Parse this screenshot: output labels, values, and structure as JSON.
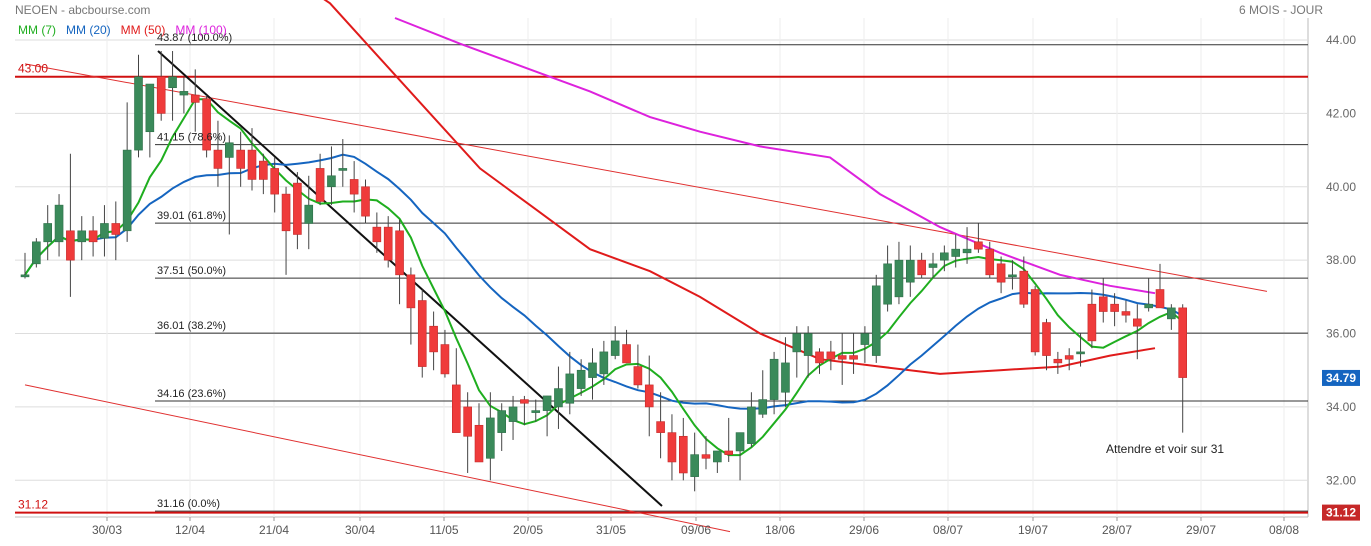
{
  "header": {
    "title": "NEOEN - abcbourse.com",
    "period": "6 MOIS - JOUR"
  },
  "legend": [
    {
      "label": "MM (7)",
      "color": "#1fae1f"
    },
    {
      "label": "MM (20)",
      "color": "#1565c0"
    },
    {
      "label": "MM (50)",
      "color": "#e01b1b"
    },
    {
      "label": "MM (100)",
      "color": "#dd22dd"
    }
  ],
  "chart_data": {
    "type": "candlestick",
    "ylim": [
      31.0,
      44.6
    ],
    "y_ticks": [
      "32.00",
      "34.00",
      "36.00",
      "38.00",
      "40.00",
      "42.00",
      "44.00"
    ],
    "x_labels": [
      "30/03",
      "12/04",
      "21/04",
      "30/04",
      "11/05",
      "20/05",
      "31/05",
      "09/06",
      "18/06",
      "29/06",
      "08/07",
      "19/07",
      "28/07",
      "29/07",
      "08/08"
    ],
    "fibonacci": [
      {
        "label": "43.87",
        "pct": "(100.0%)",
        "value": 43.87
      },
      {
        "label": "41.15",
        "pct": "(78.6%)",
        "value": 41.15
      },
      {
        "label": "39.01",
        "pct": "(61.8%)",
        "value": 39.01
      },
      {
        "label": "37.51",
        "pct": "(50.0%)",
        "value": 37.51
      },
      {
        "label": "36.01",
        "pct": "(38.2%)",
        "value": 36.01
      },
      {
        "label": "34.16",
        "pct": "(23.6%)",
        "value": 34.16
      },
      {
        "label": "31.16",
        "pct": "(0.0%)",
        "value": 31.16
      }
    ],
    "support_resistance": [
      {
        "label": "43.00",
        "value": 43.0
      },
      {
        "label": "31.12",
        "value": 31.12
      }
    ],
    "last_price": {
      "label": "34.79",
      "value": 34.79,
      "color": "#1565c0"
    },
    "support_badge": {
      "label": "31.12",
      "value": 31.12,
      "color": "#c62828"
    },
    "annotation": "Attendre et voir sur  31",
    "colors": {
      "up": "#3a8a5a",
      "down": "#ef3b3b",
      "grid": "#dddddd"
    },
    "candles": [
      [
        37.6,
        38.2,
        37.5,
        37.6
      ],
      [
        37.9,
        38.6,
        37.8,
        38.5
      ],
      [
        38.5,
        39.5,
        38.0,
        39.0
      ],
      [
        38.5,
        39.8,
        38.1,
        39.5
      ],
      [
        38.8,
        40.9,
        37.0,
        38.0
      ],
      [
        38.5,
        39.2,
        38.0,
        38.8
      ],
      [
        38.8,
        39.2,
        38.1,
        38.5
      ],
      [
        38.6,
        39.5,
        38.1,
        39.0
      ],
      [
        39.0,
        39.6,
        38.0,
        38.7
      ],
      [
        38.8,
        42.3,
        38.5,
        41.0
      ],
      [
        41.0,
        43.6,
        40.8,
        43.0
      ],
      [
        41.5,
        42.8,
        40.8,
        42.8
      ],
      [
        43.0,
        43.7,
        41.8,
        42.0
      ],
      [
        42.7,
        43.7,
        41.8,
        43.0
      ],
      [
        42.5,
        43.0,
        42.0,
        42.6
      ],
      [
        42.5,
        43.2,
        41.5,
        42.3
      ],
      [
        42.4,
        42.5,
        40.8,
        41.0
      ],
      [
        41.0,
        41.8,
        40.0,
        40.5
      ],
      [
        40.8,
        41.4,
        38.7,
        41.2
      ],
      [
        41.0,
        41.5,
        40.0,
        40.5
      ],
      [
        41.0,
        41.6,
        39.9,
        40.2
      ],
      [
        40.7,
        40.9,
        39.8,
        40.2
      ],
      [
        40.5,
        40.8,
        39.3,
        39.8
      ],
      [
        39.8,
        40.0,
        37.6,
        38.8
      ],
      [
        40.1,
        40.4,
        38.3,
        38.7
      ],
      [
        39.0,
        40.3,
        38.3,
        39.5
      ],
      [
        40.5,
        40.9,
        39.5,
        39.6
      ],
      [
        40.0,
        41.1,
        39.5,
        40.3
      ],
      [
        40.5,
        41.3,
        40.0,
        40.5
      ],
      [
        40.2,
        40.7,
        39.3,
        39.8
      ],
      [
        40.0,
        40.2,
        39.0,
        39.2
      ],
      [
        38.9,
        39.3,
        38.2,
        38.5
      ],
      [
        38.9,
        39.2,
        37.8,
        38.0
      ],
      [
        38.8,
        39.1,
        36.8,
        37.6
      ],
      [
        37.6,
        37.8,
        35.7,
        36.7
      ],
      [
        36.9,
        37.2,
        34.8,
        35.1
      ],
      [
        36.2,
        36.6,
        35.0,
        35.5
      ],
      [
        35.7,
        36.1,
        34.8,
        34.9
      ],
      [
        34.6,
        35.6,
        33.4,
        33.3
      ],
      [
        34.0,
        34.4,
        32.2,
        33.2
      ],
      [
        33.5,
        34.1,
        32.5,
        32.5
      ],
      [
        32.6,
        34.4,
        32.0,
        33.7
      ],
      [
        33.3,
        34.1,
        32.8,
        33.9
      ],
      [
        33.6,
        34.3,
        33.1,
        34.0
      ],
      [
        34.2,
        34.3,
        33.5,
        34.1
      ],
      [
        33.9,
        34.2,
        33.6,
        33.9
      ],
      [
        33.9,
        34.3,
        33.2,
        34.3
      ],
      [
        34.0,
        35.1,
        33.4,
        34.5
      ],
      [
        34.1,
        35.5,
        33.8,
        34.9
      ],
      [
        34.5,
        35.3,
        34.3,
        35.0
      ],
      [
        34.8,
        35.6,
        34.2,
        35.2
      ],
      [
        34.9,
        35.8,
        34.6,
        35.5
      ],
      [
        35.4,
        36.2,
        35.3,
        35.8
      ],
      [
        35.7,
        36.1,
        35.2,
        35.2
      ],
      [
        35.1,
        35.7,
        34.5,
        34.6
      ],
      [
        34.6,
        35.4,
        33.2,
        34.0
      ],
      [
        33.6,
        34.4,
        32.6,
        33.3
      ],
      [
        33.3,
        33.8,
        32.0,
        32.5
      ],
      [
        33.2,
        33.7,
        32.0,
        32.2
      ],
      [
        32.1,
        33.3,
        31.7,
        32.7
      ],
      [
        32.7,
        33.2,
        32.3,
        32.6
      ],
      [
        32.5,
        32.8,
        32.2,
        32.8
      ],
      [
        32.8,
        33.7,
        32.5,
        32.7
      ],
      [
        32.8,
        33.3,
        32.0,
        33.3
      ],
      [
        33.0,
        34.4,
        32.9,
        34.0
      ],
      [
        33.8,
        35.0,
        33.7,
        34.2
      ],
      [
        34.2,
        35.5,
        33.8,
        35.3
      ],
      [
        34.4,
        35.9,
        34.0,
        35.2
      ],
      [
        35.5,
        36.2,
        34.8,
        36.0
      ],
      [
        35.4,
        36.2,
        34.8,
        36.0
      ],
      [
        35.5,
        35.6,
        34.9,
        35.2
      ],
      [
        35.5,
        35.8,
        35.0,
        35.3
      ],
      [
        35.4,
        36.0,
        34.6,
        35.3
      ],
      [
        35.4,
        36.0,
        34.9,
        35.3
      ],
      [
        35.7,
        36.2,
        35.2,
        36.0
      ],
      [
        35.4,
        37.6,
        35.2,
        37.3
      ],
      [
        36.8,
        38.4,
        36.6,
        37.9
      ],
      [
        37.0,
        38.5,
        36.8,
        38.0
      ],
      [
        37.4,
        38.4,
        37.0,
        38.0
      ],
      [
        38.0,
        38.2,
        37.5,
        37.6
      ],
      [
        37.8,
        38.2,
        37.5,
        37.9
      ],
      [
        38.0,
        38.4,
        37.7,
        38.2
      ],
      [
        38.1,
        38.7,
        37.8,
        38.3
      ],
      [
        38.2,
        38.9,
        37.9,
        38.3
      ],
      [
        38.5,
        39.0,
        38.2,
        38.3
      ],
      [
        38.3,
        38.5,
        37.5,
        37.6
      ],
      [
        37.9,
        38.1,
        37.1,
        37.4
      ],
      [
        37.6,
        38.0,
        37.2,
        37.6
      ],
      [
        37.7,
        38.1,
        36.7,
        36.8
      ],
      [
        37.2,
        37.3,
        35.4,
        35.5
      ],
      [
        36.3,
        36.4,
        35.0,
        35.4
      ],
      [
        35.3,
        35.5,
        34.9,
        35.2
      ],
      [
        35.4,
        35.6,
        35.0,
        35.3
      ],
      [
        35.5,
        36.0,
        35.1,
        35.5
      ],
      [
        36.8,
        37.2,
        35.6,
        35.8
      ],
      [
        37.0,
        37.5,
        36.3,
        36.6
      ],
      [
        36.8,
        37.1,
        36.2,
        36.6
      ],
      [
        36.6,
        36.9,
        36.3,
        36.5
      ],
      [
        36.4,
        36.8,
        35.3,
        36.2
      ],
      [
        36.7,
        37.5,
        36.6,
        36.8
      ],
      [
        37.2,
        37.9,
        36.8,
        36.7
      ],
      [
        36.4,
        36.8,
        36.1,
        36.7
      ],
      [
        36.7,
        36.8,
        33.3,
        34.8
      ]
    ]
  }
}
